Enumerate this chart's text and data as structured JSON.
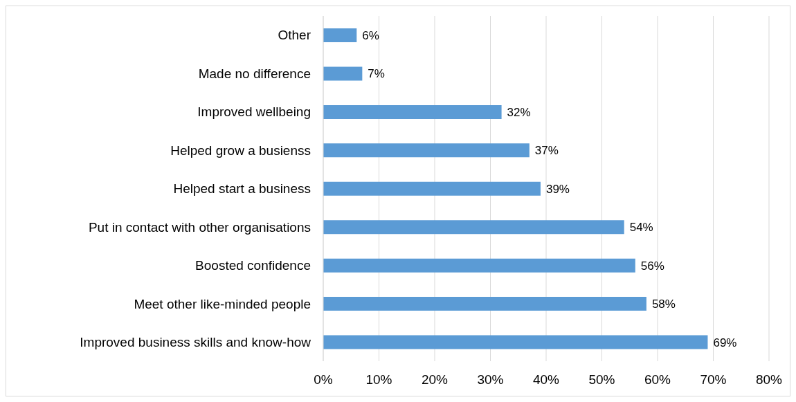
{
  "chart_data": {
    "type": "bar",
    "orientation": "horizontal",
    "categories": [
      "Other",
      "Made no difference",
      "Improved wellbeing",
      "Helped grow a busienss",
      "Helped start a business",
      "Put in contact with other organisations",
      "Boosted confidence",
      "Meet other like-minded people",
      "Improved business skills and know-how"
    ],
    "values": [
      6,
      7,
      32,
      37,
      39,
      54,
      56,
      58,
      69
    ],
    "value_labels": [
      "6%",
      "7%",
      "32%",
      "37%",
      "39%",
      "54%",
      "56%",
      "58%",
      "69%"
    ],
    "color": "#5b9bd5",
    "xlim": [
      0,
      80
    ],
    "xticks": [
      {
        "value": 0,
        "label": "0%"
      },
      {
        "value": 10,
        "label": "10%"
      },
      {
        "value": 20,
        "label": "20%"
      },
      {
        "value": 30,
        "label": "30%"
      },
      {
        "value": 40,
        "label": "40%"
      },
      {
        "value": 50,
        "label": "50%"
      },
      {
        "value": 60,
        "label": "60%"
      },
      {
        "value": 70,
        "label": "70%"
      },
      {
        "value": 80,
        "label": "80%"
      }
    ],
    "grid": "x"
  }
}
